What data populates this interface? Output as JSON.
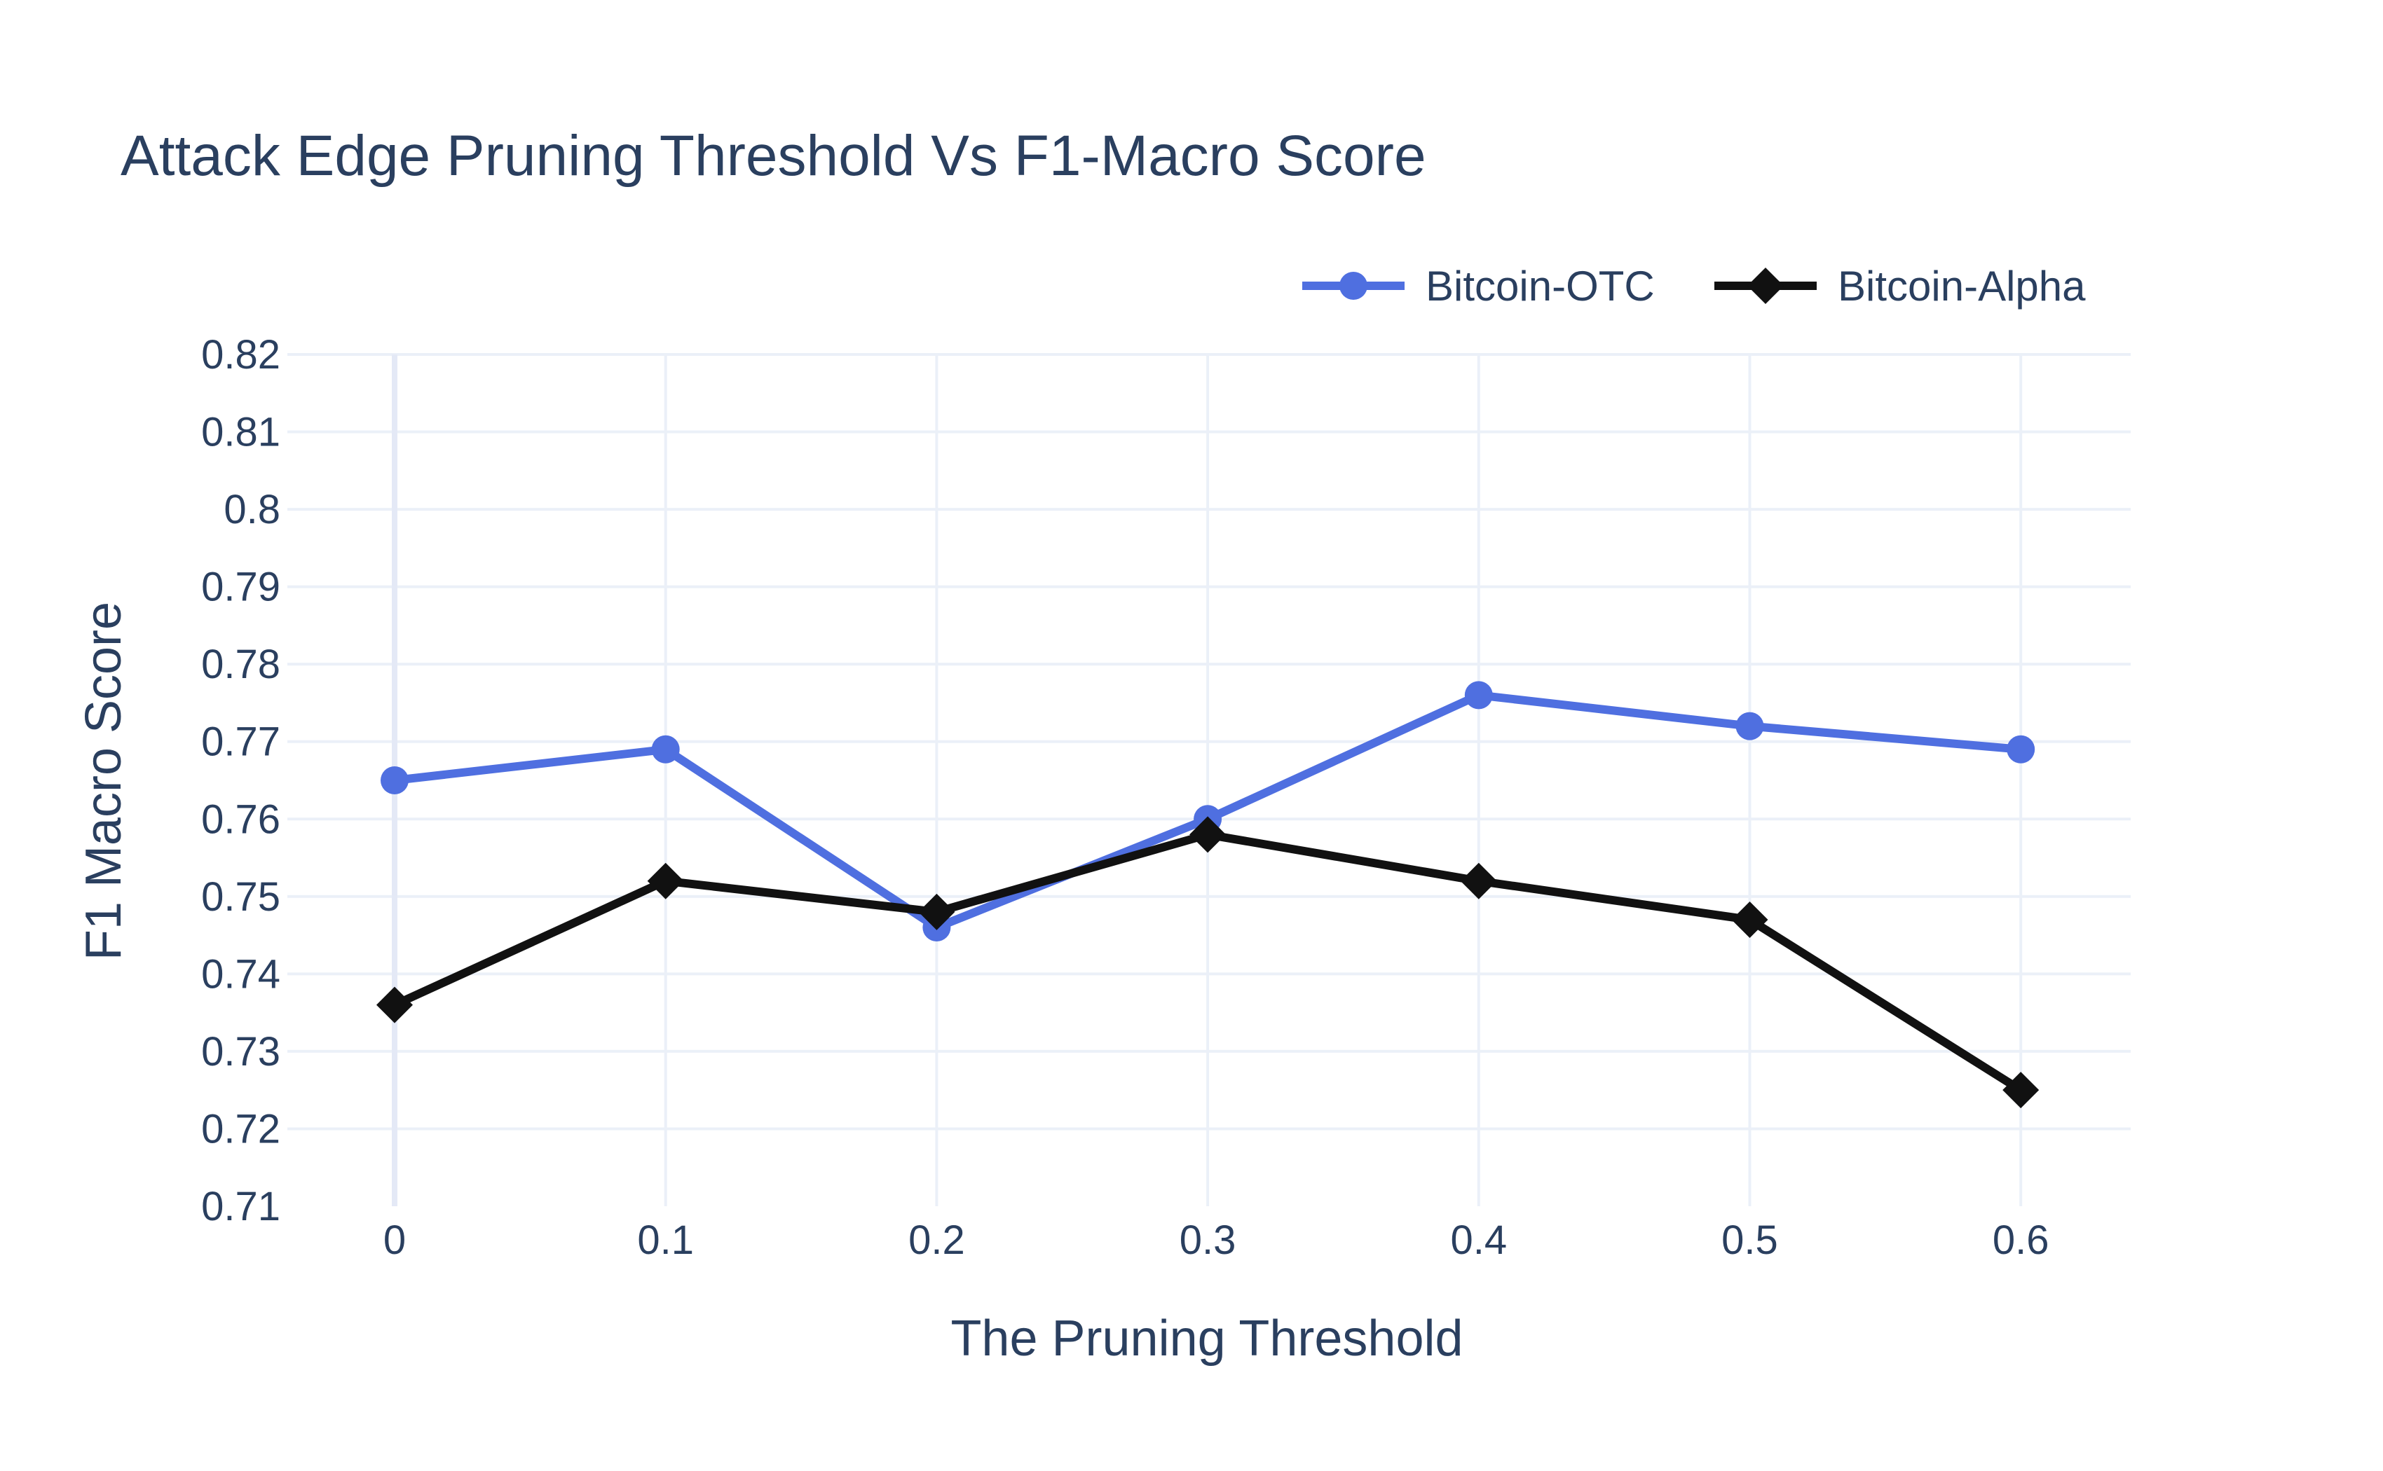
{
  "chart_data": {
    "type": "line",
    "title": "Attack Edge Pruning Threshold Vs F1-Macro Score",
    "xlabel": "The Pruning Threshold",
    "ylabel": "F1 Macro Score",
    "x": [
      0,
      0.1,
      0.2,
      0.3,
      0.4,
      0.5,
      0.6
    ],
    "x_tick_labels": [
      "0",
      "0.1",
      "0.2",
      "0.3",
      "0.4",
      "0.5",
      "0.6"
    ],
    "xlim": [
      -0.042,
      0.64
    ],
    "ylim": [
      0.71,
      0.82
    ],
    "y_ticks": [
      0.71,
      0.72,
      0.73,
      0.74,
      0.75,
      0.76,
      0.77,
      0.78,
      0.79,
      0.8,
      0.81,
      0.82
    ],
    "y_tick_labels": [
      "0.71",
      "0.72",
      "0.73",
      "0.74",
      "0.75",
      "0.76",
      "0.77",
      "0.78",
      "0.79",
      "0.8",
      "0.81",
      "0.82"
    ],
    "grid": true,
    "legend_position": "top-right",
    "series": [
      {
        "name": "Bitcoin-OTC",
        "color": "#4f6fe0",
        "marker": "circle",
        "values": [
          0.765,
          0.769,
          0.746,
          0.76,
          0.776,
          0.772,
          0.769
        ]
      },
      {
        "name": "Bitcoin-Alpha",
        "color": "#111111",
        "marker": "diamond",
        "values": [
          0.736,
          0.752,
          0.748,
          0.758,
          0.752,
          0.747,
          0.725
        ]
      }
    ]
  }
}
